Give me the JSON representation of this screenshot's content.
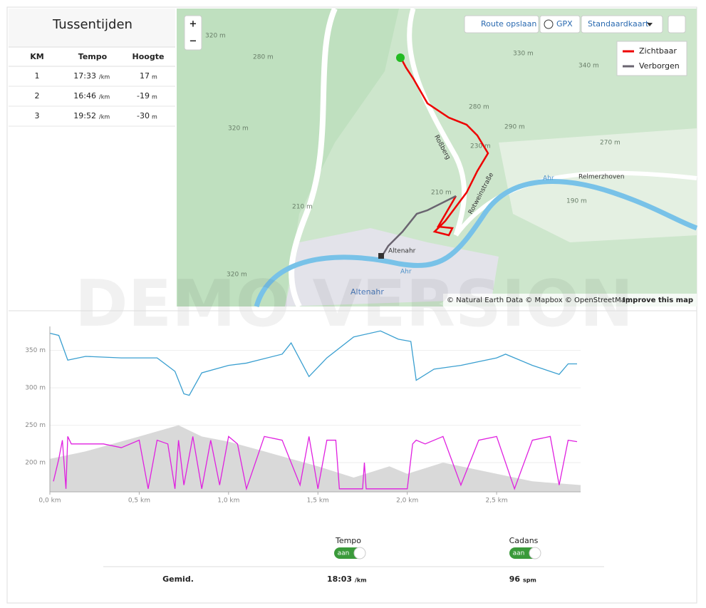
{
  "splits": {
    "title": "Tussentijden",
    "columns": [
      "KM",
      "Tempo",
      "Hoogte"
    ],
    "rows": [
      {
        "km": "1",
        "tempo": "17:33",
        "tempo_unit": "/km",
        "hoogte": "17",
        "hoogte_unit": "m"
      },
      {
        "km": "2",
        "tempo": "16:46",
        "tempo_unit": "/km",
        "hoogte": "-19",
        "hoogte_unit": "m"
      },
      {
        "km": "3",
        "tempo": "19:52",
        "tempo_unit": "/km",
        "hoogte": "-30",
        "hoogte_unit": "m"
      }
    ]
  },
  "map": {
    "zoom_in": "+",
    "zoom_out": "−",
    "buttons": [
      "Route opslaan",
      "GPX",
      "Standaardkaart"
    ],
    "legend": [
      "Zichtbaar",
      "Verborgen"
    ],
    "labels": [
      "Roßberg",
      "Rotweinstraße",
      "Altenahr",
      "Altenahr",
      "Ahr",
      "Ahr",
      "Relmerzhoven",
      "320 m",
      "280 m",
      "320 m",
      "290 m",
      "280 m",
      "330 m",
      "340 m",
      "270 m",
      "190 m",
      "210 m",
      "230 m",
      "210 m",
      "320 m"
    ],
    "attribution": "© Natural Earth Data © Mapbox © OpenStreetMap",
    "improve": "Improve this map"
  },
  "watermark": "DEMO VERSION",
  "chart_data": {
    "type": "line",
    "xlim": [
      0,
      2.97
    ],
    "xticks": [
      {
        "value": 0,
        "label": "0,0 km"
      },
      {
        "value": 0.5,
        "label": "0,5 km"
      },
      {
        "value": 1,
        "label": "1,0 km"
      },
      {
        "value": 1.5,
        "label": "1,5 km"
      },
      {
        "value": 2,
        "label": "2,0 km"
      },
      {
        "value": 2.5,
        "label": "2,5 km"
      }
    ],
    "ylim": [
      161,
      382
    ],
    "yticks": [
      {
        "value": 200,
        "label": "200 m"
      },
      {
        "value": 250,
        "label": "250 m"
      },
      {
        "value": 300,
        "label": "300 m"
      },
      {
        "value": 350,
        "label": "350 m"
      }
    ],
    "grid": true,
    "series": [
      {
        "type": "area",
        "color": "#d9d9d9",
        "x": [
          0,
          0.2,
          0.5,
          0.72,
          0.85,
          1.0,
          1.2,
          1.5,
          1.7,
          1.9,
          2.0,
          2.2,
          2.5,
          2.7,
          2.97
        ],
        "values": [
          205,
          215,
          235,
          250,
          235,
          228,
          215,
          195,
          180,
          195,
          185,
          200,
          185,
          175,
          170
        ]
      },
      {
        "type": "line",
        "color": "#e020e0",
        "x": [
          0.02,
          0.05,
          0.07,
          0.09,
          0.1,
          0.12,
          0.2,
          0.3,
          0.4,
          0.5,
          0.55,
          0.6,
          0.66,
          0.7,
          0.72,
          0.75,
          0.8,
          0.85,
          0.9,
          0.95,
          1.0,
          1.05,
          1.1,
          1.2,
          1.3,
          1.4,
          1.45,
          1.5,
          1.55,
          1.6,
          1.62,
          1.75,
          1.76,
          1.77,
          2.0,
          2.03,
          2.05,
          2.1,
          2.2,
          2.3,
          2.4,
          2.5,
          2.6,
          2.7,
          2.8,
          2.85,
          2.9,
          2.95
        ],
        "values": [
          175,
          205,
          230,
          165,
          235,
          225,
          225,
          225,
          220,
          230,
          165,
          230,
          225,
          165,
          230,
          170,
          235,
          165,
          230,
          170,
          235,
          225,
          165,
          235,
          230,
          170,
          235,
          165,
          230,
          230,
          165,
          165,
          200,
          165,
          165,
          225,
          230,
          225,
          235,
          170,
          230,
          235,
          165,
          230,
          235,
          170,
          230,
          228
        ]
      },
      {
        "type": "line",
        "color": "#3a9fd0",
        "x": [
          0,
          0.05,
          0.1,
          0.2,
          0.4,
          0.6,
          0.7,
          0.75,
          0.78,
          0.85,
          1.0,
          1.1,
          1.3,
          1.35,
          1.45,
          1.55,
          1.7,
          1.85,
          1.95,
          2.02,
          2.05,
          2.15,
          2.3,
          2.5,
          2.55,
          2.7,
          2.85,
          2.9,
          2.95
        ],
        "values": [
          373,
          370,
          337,
          342,
          340,
          340,
          322,
          292,
          290,
          320,
          330,
          333,
          345,
          360,
          315,
          340,
          368,
          376,
          365,
          362,
          310,
          325,
          330,
          340,
          345,
          330,
          318,
          332,
          332
        ]
      }
    ]
  },
  "summary": {
    "toggles": [
      {
        "label": "Tempo",
        "state": "aan"
      },
      {
        "label": "Cadans",
        "state": "aan"
      }
    ],
    "row_label": "Gemid.",
    "tempo": "18:03",
    "tempo_unit": "/km",
    "cadans": "96",
    "cadans_unit": "spm"
  }
}
